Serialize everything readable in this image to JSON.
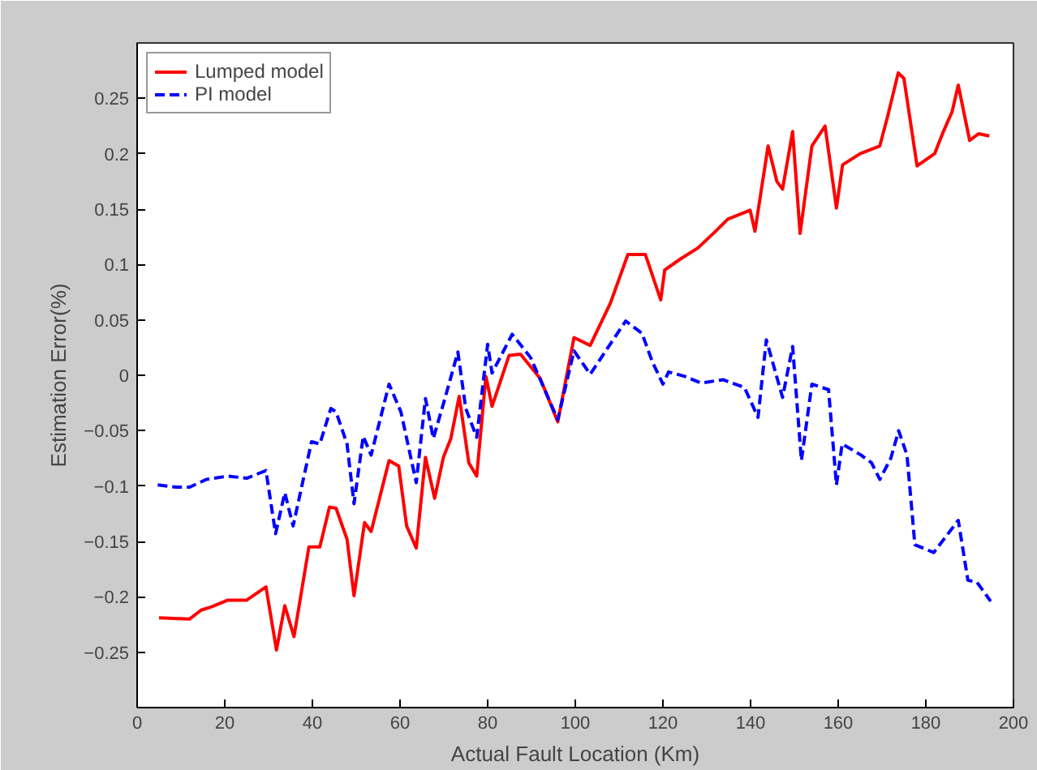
{
  "chart_data": {
    "type": "line",
    "xlabel": "Actual Fault Location (Km)",
    "ylabel": "Estimation Error(%)",
    "xlim": [
      0,
      200
    ],
    "xticks": [
      0,
      20,
      40,
      60,
      80,
      100,
      120,
      140,
      160,
      180,
      200
    ],
    "ylim": [
      -0.3,
      0.3
    ],
    "yticks": [
      -0.25,
      -0.2,
      -0.15,
      -0.1,
      -0.05,
      0,
      0.05,
      0.1,
      0.15,
      0.2,
      0.25
    ],
    "grid": false,
    "legend": "top left",
    "series": [
      {
        "name": "Lumped model",
        "color": "#ff0000",
        "line_style": "solid",
        "x": [
          5,
          12,
          14.6,
          17,
          20.7,
          25,
          29.4,
          31.8,
          33.7,
          35.8,
          39.2,
          41.7,
          43.9,
          45.4,
          47.9,
          49.5,
          51.9,
          53.4,
          57.5,
          59.7,
          61.5,
          63.7,
          65.8,
          67.9,
          69.9,
          71.6,
          73.5,
          75.7,
          77.5,
          79.6,
          81,
          84.9,
          87.5,
          92,
          96,
          99.7,
          103.4,
          108,
          112,
          116,
          119.5,
          120.4,
          124,
          128,
          132,
          134.8,
          139.9,
          141,
          144,
          146,
          147.3,
          149.6,
          151.3,
          154,
          157,
          159.6,
          161,
          165,
          169.5,
          171.3,
          173.7,
          175,
          178,
          182,
          184,
          186,
          187.4,
          190,
          192,
          194.5
        ],
        "values": [
          -0.219,
          -0.22,
          -0.212,
          -0.209,
          -0.203,
          -0.203,
          -0.191,
          -0.248,
          -0.208,
          -0.236,
          -0.155,
          -0.155,
          -0.119,
          -0.12,
          -0.148,
          -0.199,
          -0.133,
          -0.141,
          -0.077,
          -0.082,
          -0.136,
          -0.156,
          -0.074,
          -0.111,
          -0.074,
          -0.057,
          -0.019,
          -0.079,
          -0.091,
          -0.001,
          -0.028,
          0.018,
          0.019,
          -0.003,
          -0.042,
          0.034,
          0.027,
          0.065,
          0.109,
          0.109,
          0.068,
          0.095,
          0.105,
          0.115,
          0.13,
          0.141,
          0.149,
          0.13,
          0.207,
          0.175,
          0.168,
          0.22,
          0.128,
          0.207,
          0.225,
          0.151,
          0.19,
          0.2,
          0.207,
          0.234,
          0.273,
          0.268,
          0.189,
          0.2,
          0.22,
          0.238,
          0.262,
          0.212,
          0.218,
          0.216
        ]
      },
      {
        "name": "PI model",
        "color": "#0000ff",
        "line_style": "dashed",
        "x": [
          4.7,
          9,
          12,
          15.8,
          20.7,
          25,
          29.4,
          31.6,
          33.7,
          35.6,
          39.8,
          41.7,
          44.2,
          45.4,
          47.9,
          49.5,
          51.6,
          53.4,
          57.5,
          60.2,
          63.7,
          65.8,
          67.6,
          70.1,
          73.2,
          75,
          77.5,
          80,
          81,
          85.6,
          89.8,
          96,
          99.7,
          103.4,
          111.5,
          115.2,
          117.6,
          120,
          121.3,
          125,
          128.7,
          133.7,
          138.6,
          141.7,
          143.6,
          147.3,
          149.6,
          151.6,
          154,
          157.8,
          159.6,
          160.9,
          165.2,
          167.6,
          169.5,
          172,
          173.8,
          175.7,
          177.5,
          181.8,
          187.4,
          189.6,
          191.7,
          194.8
        ],
        "values": [
          -0.099,
          -0.101,
          -0.101,
          -0.094,
          -0.091,
          -0.093,
          -0.086,
          -0.143,
          -0.106,
          -0.136,
          -0.06,
          -0.062,
          -0.03,
          -0.033,
          -0.062,
          -0.116,
          -0.055,
          -0.072,
          -0.008,
          -0.033,
          -0.097,
          -0.021,
          -0.057,
          -0.023,
          0.021,
          -0.03,
          -0.056,
          0.028,
          0.002,
          0.037,
          0.016,
          -0.04,
          0.022,
          0.001,
          0.049,
          0.038,
          0.012,
          -0.008,
          0.003,
          -0.001,
          -0.007,
          -0.004,
          -0.011,
          -0.038,
          0.032,
          -0.02,
          0.026,
          -0.077,
          -0.008,
          -0.013,
          -0.099,
          -0.062,
          -0.072,
          -0.079,
          -0.094,
          -0.075,
          -0.05,
          -0.072,
          -0.153,
          -0.16,
          -0.131,
          -0.185,
          -0.187,
          -0.204
        ]
      }
    ]
  }
}
